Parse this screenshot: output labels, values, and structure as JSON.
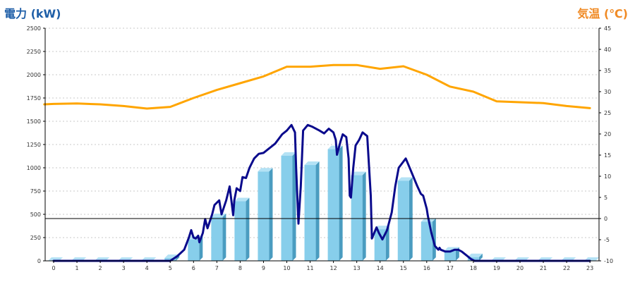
{
  "title_left": "電力 (kW)",
  "title_right": "気温 (℃)",
  "colors": {
    "title_left": "#1f5fa8",
    "title_right": "#f08a24",
    "bar_front": "#87ceeb",
    "bar_side": "#4a9cc0",
    "bar_top": "#b4e2f5",
    "power_line": "#0a0a8c",
    "temp_line": "#ffa500",
    "grid": "#c8c8c8",
    "zero_line": "#000000"
  },
  "chart_data": {
    "type": "bar",
    "x_ticks": [
      "0",
      "1",
      "2",
      "3",
      "4",
      "5",
      "6",
      "7",
      "8",
      "9",
      "10",
      "11",
      "12",
      "13",
      "14",
      "15",
      "16",
      "17",
      "18",
      "19",
      "20",
      "21",
      "22",
      "23"
    ],
    "y_left": {
      "min": 0,
      "max": 2500,
      "step": 250,
      "ticks": [
        "0",
        "250",
        "500",
        "750",
        "1000",
        "1250",
        "1500",
        "1750",
        "2000",
        "2250",
        "2500"
      ]
    },
    "y_right": {
      "min": -10,
      "max": 45,
      "step": 5,
      "ticks": [
        "-10",
        "-5",
        "0",
        "5",
        "10",
        "15",
        "20",
        "25",
        "30",
        "35",
        "40",
        "45"
      ]
    },
    "grid": true,
    "series": [
      {
        "kind": "bar",
        "axis": "left",
        "values": [
          0,
          0,
          0,
          0,
          0,
          30,
          230,
          470,
          640,
          960,
          1130,
          1030,
          1200,
          920,
          340,
          860,
          420,
          110,
          40,
          0,
          0,
          0,
          0,
          0
        ]
      },
      {
        "kind": "line",
        "axis": "left",
        "points": [
          [
            0,
            0
          ],
          [
            1,
            0
          ],
          [
            2,
            0
          ],
          [
            3,
            0
          ],
          [
            4,
            0
          ],
          [
            5,
            0
          ],
          [
            5.3,
            50
          ],
          [
            5.6,
            120
          ],
          [
            5.8,
            250
          ],
          [
            5.9,
            330
          ],
          [
            6.0,
            250
          ],
          [
            6.1,
            240
          ],
          [
            6.2,
            270
          ],
          [
            6.25,
            200
          ],
          [
            6.4,
            300
          ],
          [
            6.5,
            450
          ],
          [
            6.6,
            350
          ],
          [
            6.8,
            500
          ],
          [
            6.9,
            600
          ],
          [
            7.1,
            650
          ],
          [
            7.2,
            500
          ],
          [
            7.4,
            650
          ],
          [
            7.55,
            800
          ],
          [
            7.7,
            490
          ],
          [
            7.75,
            650
          ],
          [
            7.85,
            780
          ],
          [
            8.0,
            750
          ],
          [
            8.1,
            900
          ],
          [
            8.25,
            890
          ],
          [
            8.4,
            1000
          ],
          [
            8.6,
            1100
          ],
          [
            8.8,
            1150
          ],
          [
            9.0,
            1160
          ],
          [
            9.2,
            1200
          ],
          [
            9.5,
            1260
          ],
          [
            9.8,
            1360
          ],
          [
            10.0,
            1400
          ],
          [
            10.2,
            1460
          ],
          [
            10.35,
            1380
          ],
          [
            10.4,
            1000
          ],
          [
            10.5,
            400
          ],
          [
            10.6,
            800
          ],
          [
            10.7,
            1400
          ],
          [
            10.9,
            1460
          ],
          [
            11.1,
            1440
          ],
          [
            11.4,
            1400
          ],
          [
            11.6,
            1370
          ],
          [
            11.8,
            1420
          ],
          [
            12.0,
            1380
          ],
          [
            12.1,
            1300
          ],
          [
            12.15,
            1140
          ],
          [
            12.3,
            1280
          ],
          [
            12.4,
            1360
          ],
          [
            12.55,
            1330
          ],
          [
            12.65,
            1100
          ],
          [
            12.7,
            700
          ],
          [
            12.75,
            680
          ],
          [
            12.85,
            1000
          ],
          [
            12.95,
            1240
          ],
          [
            13.1,
            1300
          ],
          [
            13.25,
            1380
          ],
          [
            13.45,
            1340
          ],
          [
            13.6,
            700
          ],
          [
            13.65,
            240
          ],
          [
            13.75,
            300
          ],
          [
            13.85,
            360
          ],
          [
            13.95,
            300
          ],
          [
            14.1,
            230
          ],
          [
            14.3,
            330
          ],
          [
            14.5,
            520
          ],
          [
            14.65,
            800
          ],
          [
            14.8,
            1000
          ],
          [
            14.95,
            1050
          ],
          [
            15.1,
            1100
          ],
          [
            15.3,
            980
          ],
          [
            15.5,
            860
          ],
          [
            15.6,
            800
          ],
          [
            15.75,
            720
          ],
          [
            15.85,
            700
          ],
          [
            16.0,
            560
          ],
          [
            16.05,
            480
          ],
          [
            16.2,
            300
          ],
          [
            16.35,
            160
          ],
          [
            16.5,
            120
          ],
          [
            16.55,
            140
          ],
          [
            16.6,
            120
          ],
          [
            16.8,
            100
          ],
          [
            17.0,
            100
          ],
          [
            17.2,
            120
          ],
          [
            17.35,
            120
          ],
          [
            17.5,
            100
          ],
          [
            17.7,
            60
          ],
          [
            17.9,
            20
          ],
          [
            18.05,
            0
          ],
          [
            19,
            0
          ],
          [
            20,
            0
          ],
          [
            21,
            0
          ],
          [
            22,
            0
          ],
          [
            23,
            0
          ]
        ]
      },
      {
        "kind": "line",
        "axis": "right",
        "points": [
          [
            -0.4,
            27
          ],
          [
            0,
            27.1
          ],
          [
            1,
            27.2
          ],
          [
            2,
            27
          ],
          [
            3,
            26.6
          ],
          [
            4,
            26
          ],
          [
            5,
            26.4
          ],
          [
            6,
            28.5
          ],
          [
            7,
            30.4
          ],
          [
            8,
            32
          ],
          [
            9,
            33.6
          ],
          [
            10,
            35.9
          ],
          [
            11,
            35.9
          ],
          [
            12,
            36.3
          ],
          [
            13,
            36.3
          ],
          [
            14,
            35.4
          ],
          [
            15,
            36
          ],
          [
            16,
            34
          ],
          [
            17,
            31.2
          ],
          [
            18,
            30
          ],
          [
            19,
            27.7
          ],
          [
            20,
            27.5
          ],
          [
            21,
            27.3
          ],
          [
            22,
            26.6
          ],
          [
            23,
            26.1
          ]
        ]
      }
    ]
  }
}
